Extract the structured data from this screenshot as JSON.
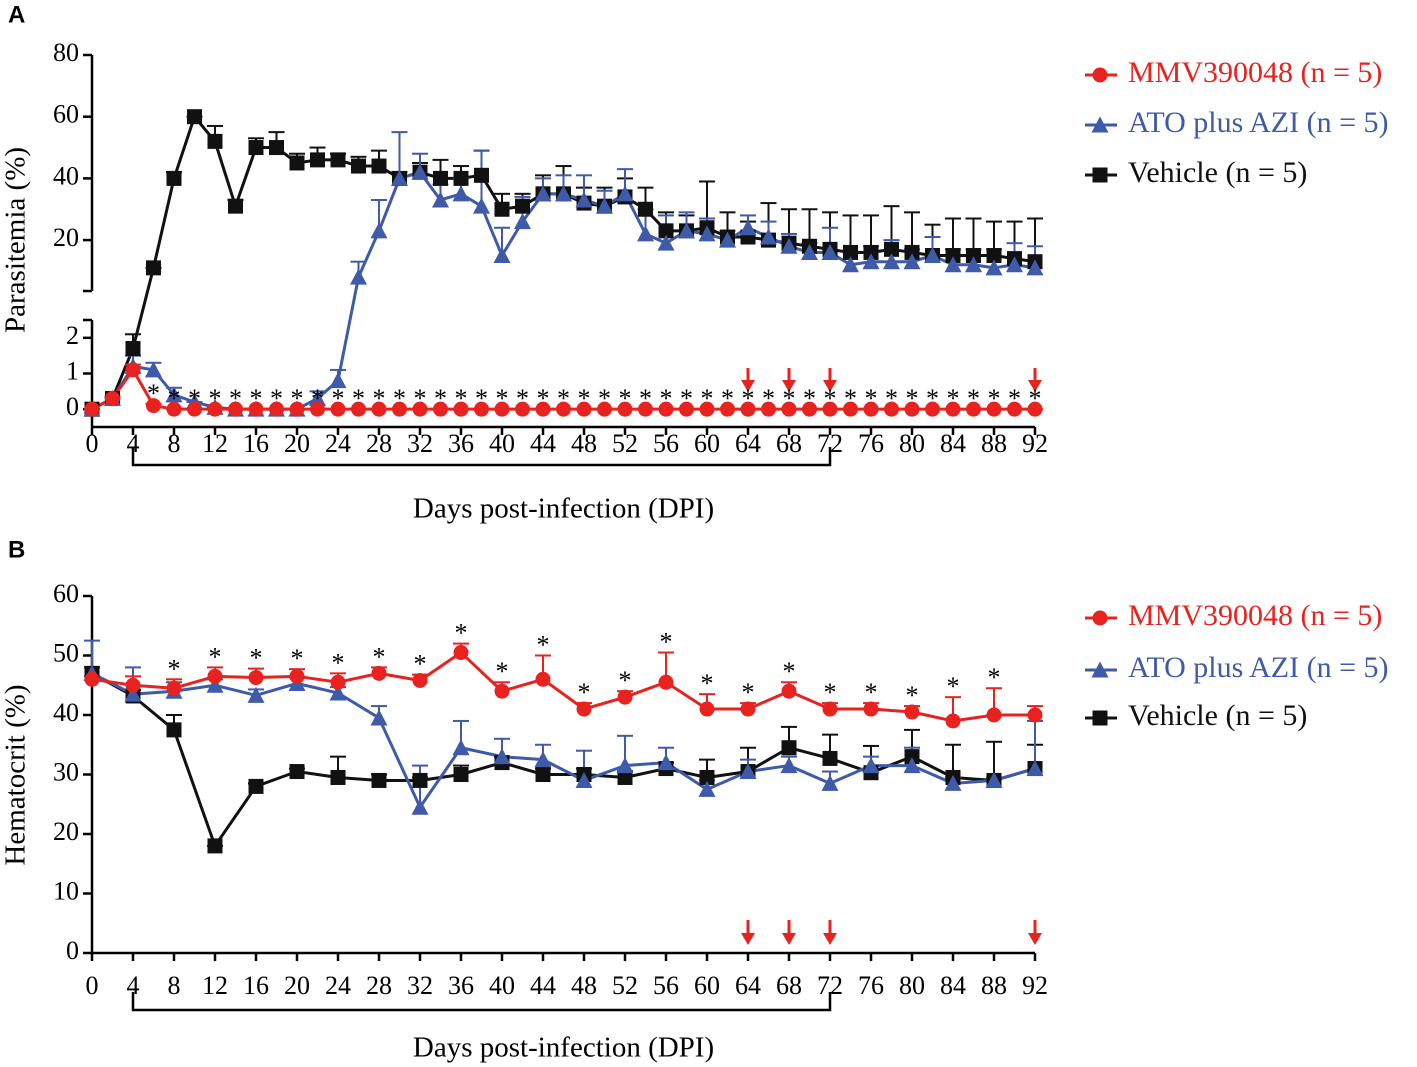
{
  "chart_data": [
    {
      "type": "line",
      "panel": "A",
      "ylabel": "Parasitemia (%)",
      "xlabel": "Days post-infection (DPI)",
      "xlim": [
        0,
        92
      ],
      "xticks": [
        0,
        4,
        8,
        12,
        16,
        20,
        24,
        28,
        32,
        36,
        40,
        44,
        48,
        52,
        56,
        60,
        64,
        68,
        72,
        76,
        80,
        84,
        88,
        92
      ],
      "y_segments": [
        {
          "ylim": [
            -0.5,
            2.5
          ],
          "yticks": [
            0,
            1,
            2
          ]
        },
        {
          "ylim": [
            3.5,
            80
          ],
          "yticks": [
            20,
            40,
            60,
            80
          ]
        }
      ],
      "x": [
        0,
        2,
        4,
        6,
        8,
        10,
        12,
        14,
        16,
        18,
        20,
        22,
        24,
        26,
        28,
        30,
        32,
        34,
        36,
        38,
        40,
        42,
        44,
        46,
        48,
        50,
        52,
        54,
        56,
        58,
        60,
        62,
        64,
        66,
        68,
        70,
        72,
        74,
        76,
        78,
        80,
        82,
        84,
        86,
        88,
        90,
        92
      ],
      "series": [
        {
          "name": "MMV390048 (n = 5)",
          "color": "#e8221f",
          "marker": "circle",
          "values": [
            0,
            0.3,
            1.1,
            0.1,
            0,
            0,
            0,
            0,
            0,
            0,
            0,
            0,
            0,
            0,
            0,
            0,
            0,
            0,
            0,
            0,
            0,
            0,
            0,
            0,
            0,
            0,
            0,
            0,
            0,
            0,
            0,
            0,
            0,
            0,
            0,
            0,
            0,
            0,
            0,
            0,
            0,
            0,
            0,
            0,
            0,
            0,
            0
          ],
          "errors": [
            0,
            0.05,
            0.15,
            0.05,
            0,
            0,
            0,
            0,
            0,
            0,
            0,
            0,
            0,
            0,
            0,
            0,
            0,
            0,
            0,
            0,
            0,
            0,
            0,
            0,
            0,
            0,
            0,
            0,
            0,
            0,
            0,
            0,
            0,
            0,
            0,
            0,
            0,
            0,
            0,
            0,
            0,
            0,
            0,
            0,
            0,
            0,
            0
          ]
        },
        {
          "name": "ATO plus AZI (n = 5)",
          "color": "#3e5aa8",
          "marker": "triangle",
          "values": [
            0,
            0.3,
            1.2,
            1.1,
            0.4,
            0.2,
            0.05,
            0,
            0,
            0,
            0,
            0.3,
            0.8,
            8,
            23,
            40,
            42,
            33,
            35,
            31,
            15,
            26,
            35,
            35,
            33,
            31,
            35,
            22,
            19,
            23,
            22,
            20,
            24,
            21,
            18,
            16,
            16,
            12,
            13,
            13,
            13,
            15,
            12,
            12,
            11,
            12,
            11
          ],
          "errors": [
            0,
            0,
            0.3,
            0.2,
            0.2,
            0,
            0,
            0,
            0,
            0,
            0,
            0.2,
            0.3,
            5,
            10,
            15,
            6,
            5,
            5,
            18,
            9,
            8,
            5,
            6,
            8,
            5,
            8,
            8,
            9,
            6,
            5,
            3,
            4,
            5,
            4,
            3,
            8,
            4,
            5,
            7,
            4,
            6,
            5,
            5,
            6,
            7,
            7
          ]
        },
        {
          "name": "Vehicle (n = 5)",
          "color": "#111111",
          "marker": "square",
          "values": [
            0,
            0.3,
            1.7,
            11,
            40,
            60,
            52,
            31,
            50,
            50,
            45,
            46,
            46,
            44,
            44,
            40,
            42,
            40,
            40,
            41,
            30,
            31,
            35,
            35,
            32,
            31,
            34,
            30,
            23,
            23,
            24,
            21,
            21,
            20,
            19,
            18,
            17,
            16,
            16,
            17,
            16,
            15,
            15,
            15,
            15,
            14,
            13
          ],
          "errors": [
            0,
            0.05,
            0.4,
            0,
            2,
            0,
            5,
            2,
            3,
            5,
            3,
            4,
            2,
            3,
            5,
            2,
            3,
            6,
            4,
            8,
            5,
            4,
            6,
            9,
            5,
            6,
            6,
            7,
            6,
            5,
            15,
            8,
            5,
            12,
            11,
            12,
            12,
            12,
            12,
            14,
            13,
            10,
            12,
            12,
            11,
            12,
            14
          ]
        }
      ],
      "asterisk": {
        "label": "*",
        "x": [
          6,
          8,
          10,
          12,
          14,
          16,
          18,
          20,
          22,
          24,
          26,
          28,
          30,
          32,
          34,
          36,
          38,
          40,
          42,
          44,
          46,
          48,
          50,
          52,
          54,
          56,
          58,
          60,
          62,
          64,
          66,
          68,
          70,
          72,
          74,
          76,
          78,
          80,
          82,
          84,
          86,
          88,
          90,
          92
        ]
      },
      "treatment_days": [
        4,
        72
      ],
      "dose_days": [
        64,
        68,
        72,
        92
      ],
      "dose_color": "#e8221f",
      "legend": "right"
    },
    {
      "type": "line",
      "panel": "B",
      "ylabel": "Hematocrit (%)",
      "xlabel": "Days post-infection (DPI)",
      "xlim": [
        0,
        92
      ],
      "xticks": [
        0,
        4,
        8,
        12,
        16,
        20,
        24,
        28,
        32,
        36,
        40,
        44,
        48,
        52,
        56,
        60,
        64,
        68,
        72,
        76,
        80,
        84,
        88,
        92
      ],
      "y_segments": [
        {
          "ylim": [
            0,
            60
          ],
          "yticks": [
            0,
            10,
            20,
            30,
            40,
            50,
            60
          ]
        }
      ],
      "x": [
        0,
        4,
        8,
        12,
        16,
        20,
        24,
        28,
        32,
        36,
        40,
        44,
        48,
        52,
        56,
        60,
        64,
        68,
        72,
        76,
        80,
        84,
        88,
        92
      ],
      "series": [
        {
          "name": "MMV390048 (n = 5)",
          "color": "#e8221f",
          "marker": "circle",
          "values": [
            46,
            45,
            44.5,
            46.5,
            46.3,
            46.5,
            45.5,
            47,
            45.8,
            50.5,
            44,
            46,
            41,
            43,
            45.5,
            41,
            41,
            44,
            41,
            41,
            40.5,
            39,
            40,
            40
          ],
          "errors": [
            0.5,
            1.5,
            1.5,
            1.5,
            1.5,
            1.2,
            1.5,
            1,
            1,
            1.5,
            1.5,
            4,
            1,
            1,
            5,
            2.5,
            1,
            1.5,
            1,
            1,
            1,
            4,
            4.5,
            1.5
          ]
        },
        {
          "name": "ATO plus AZI (n = 5)",
          "color": "#3e5aa8",
          "marker": "triangle",
          "values": [
            47,
            43.5,
            44,
            45,
            43.3,
            45.3,
            43.7,
            39.5,
            24.5,
            34.5,
            33,
            32.5,
            29,
            31.5,
            32,
            27.5,
            30.5,
            31.5,
            28.5,
            31.5,
            31.5,
            28.5,
            29,
            31
          ],
          "errors": [
            5.5,
            4.5,
            1.5,
            1,
            1,
            1,
            1,
            2,
            7,
            4.5,
            3,
            2.5,
            5,
            5,
            2.5,
            1.5,
            2,
            1.5,
            2,
            1.5,
            3,
            1,
            0.5,
            8
          ]
        },
        {
          "name": "Vehicle (n = 5)",
          "color": "#111111",
          "marker": "square",
          "values": [
            47,
            43.2,
            37.5,
            18,
            28,
            30.5,
            29.5,
            29,
            29,
            30,
            32,
            30,
            30,
            29.5,
            31,
            29.5,
            30.5,
            34.5,
            32.7,
            30.3,
            33,
            29.5,
            29,
            31
          ],
          "errors": [
            1,
            1,
            2.5,
            0,
            0.5,
            0.5,
            3.5,
            1,
            0.5,
            1.5,
            1,
            1,
            1,
            1,
            1,
            3,
            4,
            3.5,
            4,
            4.5,
            4.5,
            5.5,
            6.5,
            4
          ]
        }
      ],
      "asterisk": {
        "label": "*",
        "x": [
          8,
          12,
          16,
          20,
          24,
          28,
          32,
          36,
          40,
          44,
          48,
          52,
          56,
          60,
          64,
          68,
          72,
          76,
          80,
          84,
          88
        ]
      },
      "treatment_days": [
        4,
        72
      ],
      "dose_days": [
        64,
        68,
        72,
        92
      ],
      "dose_color": "#e8221f",
      "legend": "right"
    }
  ]
}
